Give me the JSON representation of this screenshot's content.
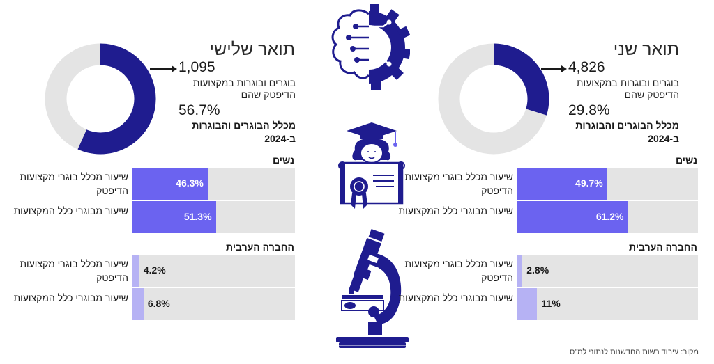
{
  "colors": {
    "navy": "#1f1c8f",
    "ring_bg": "#e4e4e4",
    "bar_strong": "#6b63f0",
    "bar_light": "#b6b2f4",
    "bar_bg": "#e4e4e4"
  },
  "panels": {
    "third": {
      "title": "תואר שלישי",
      "count": "1,095",
      "count_desc": "בוגרים ובוגרות במקצועות הדיפטק שהם",
      "share_label": "56.7%",
      "share_desc": "מכלל הבוגרים והבוגרות ב-2024"
    },
    "second": {
      "title": "תואר שני",
      "count": "4,826",
      "count_desc": "בוגרים ובוגרות במקצועות הדיפטק שהם",
      "share_label": "29.8%",
      "share_desc": "מכלל הבוגרים והבוגרות ב-2024"
    }
  },
  "sections": {
    "women": "נשים",
    "arab": "החברה הערבית"
  },
  "row_labels": {
    "deeptech": "שיעור מכלל בוגרי מקצועות הדיפטק",
    "all": "שיעור מבוגרי כלל המקצועות"
  },
  "chart_data": [
    {
      "type": "pie",
      "title": "תואר שלישי",
      "values": [
        56.7,
        43.3
      ],
      "labels": [
        "56.7%",
        ""
      ]
    },
    {
      "type": "pie",
      "title": "תואר שני",
      "values": [
        29.8,
        70.2
      ],
      "labels": [
        "29.8%",
        ""
      ]
    },
    {
      "type": "bar",
      "title": "תואר שלישי — נשים",
      "categories": [
        "שיעור מכלל בוגרי מקצועות הדיפטק",
        "שיעור מבוגרי כלל המקצועות"
      ],
      "values": [
        46.3,
        51.3
      ],
      "labels": [
        "46.3%",
        "51.3%"
      ],
      "ylim": [
        0,
        100
      ]
    },
    {
      "type": "bar",
      "title": "תואר שלישי — החברה הערבית",
      "categories": [
        "שיעור מכלל בוגרי מקצועות הדיפטק",
        "שיעור מבוגרי כלל המקצועות"
      ],
      "values": [
        4.2,
        6.8
      ],
      "labels": [
        "4.2%",
        "6.8%"
      ],
      "ylim": [
        0,
        100
      ]
    },
    {
      "type": "bar",
      "title": "תואר שני — נשים",
      "categories": [
        "שיעור מכלל בוגרי מקצועות הדיפטק",
        "שיעור מבוגרי כלל המקצועות"
      ],
      "values": [
        49.7,
        61.2
      ],
      "labels": [
        "49.7%",
        "61.2%"
      ],
      "ylim": [
        0,
        100
      ]
    },
    {
      "type": "bar",
      "title": "תואר שני — החברה הערבית",
      "categories": [
        "שיעור מכלל בוגרי מקצועות הדיפטק",
        "שיעור מבוגרי כלל המקצועות"
      ],
      "values": [
        2.8,
        11
      ],
      "labels": [
        "2.8%",
        "11%"
      ],
      "ylim": [
        0,
        100
      ]
    }
  ],
  "source": "מקור: עיבוד רשות החדשנות לנתוני למ\"ס"
}
